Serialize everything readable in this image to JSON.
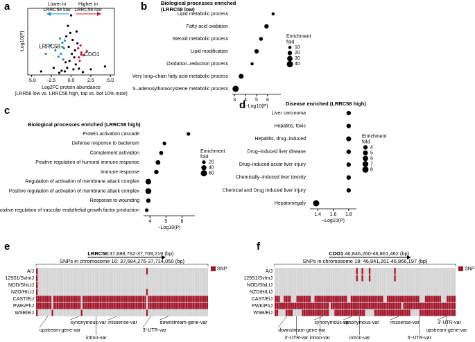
{
  "chart_data": [
    {
      "type": "scatter",
      "panel": "a",
      "annotations": {
        "left_arrow": "Lower in\nLRRC58 low",
        "right_arrow": "Higher in\nLRRC58 low"
      },
      "x_label": "Log2FC protein abundance",
      "x_sublabel": "(LRR58 low vs. LRRC58 high, top vs. bot 10% mice)",
      "y_label": "-Log10(P)",
      "xlim": [
        -5.5,
        5.5
      ],
      "ylim": [
        0,
        9.5
      ],
      "xticks": [
        {
          "value": -5,
          "label": "-5.0"
        },
        {
          "value": -2.5,
          "label": "-2.5"
        },
        {
          "value": 0,
          "label": "0.0"
        },
        {
          "value": 2.5,
          "label": "2.5"
        },
        {
          "value": 5,
          "label": "5.0"
        }
      ],
      "series": [
        {
          "color": "#000000",
          "x": [
            -0.5,
            0.3,
            -0.2,
            0.1,
            0.4,
            -0.7,
            0.6,
            -0.3,
            0.2,
            -0.1,
            0.5,
            -0.8,
            1,
            -1.2,
            0.8,
            -0.4,
            0,
            -1.5,
            1.5,
            4.3,
            -3.8,
            -2.2,
            2.5,
            -0.6,
            0.7
          ],
          "values": [
            1,
            0.8,
            2,
            3,
            2.5,
            1.8,
            1.5,
            4,
            5,
            6,
            3.5,
            0.5,
            0.9,
            0.6,
            4.5,
            7,
            8.5,
            0.3,
            0.4,
            1.2,
            0.5,
            1,
            0.8,
            5.5,
            6.2
          ]
        },
        {
          "color": "#1f8fb5",
          "x": [
            -1,
            -1.3,
            -0.9,
            -1.6,
            -2,
            -1.1,
            -2.6,
            -1.4,
            -0.8,
            -3.2,
            -1.1
          ],
          "values": [
            2.2,
            3,
            3.8,
            2.6,
            3.5,
            4.6,
            4.2,
            5.2,
            4.9,
            3,
            4
          ],
          "point_labels": [
            null,
            null,
            null,
            null,
            null,
            null,
            null,
            null,
            null,
            null,
            "LRRC58"
          ]
        },
        {
          "color": "#c0143c",
          "x": [
            1,
            1.3,
            0.9,
            1.6,
            1.2,
            2,
            1.1,
            1.3
          ],
          "values": [
            2.5,
            3.2,
            3.8,
            2.8,
            4.2,
            3.4,
            2,
            2.9
          ],
          "point_labels": [
            null,
            null,
            null,
            null,
            null,
            null,
            null,
            "CDO1"
          ]
        }
      ]
    },
    {
      "type": "dot",
      "panel": "b",
      "title": "Biological processes enriched\n(LRRC58 low)",
      "x_label": "−Log10(P)",
      "categories": [
        "Lipid metabolic process",
        "Fatty acid oxidation",
        "Steroid metabolic process",
        "Lipid modification",
        "Oxidation–reduction process",
        "Very long–chain fatty acid metabolic process",
        "S–adenosylhomocysteine metabolic process"
      ],
      "values": [
        6.5,
        5.9,
        5.4,
        5,
        4.6,
        3.6,
        3.1
      ],
      "sizes": [
        10,
        20,
        15,
        20,
        10,
        25,
        40
      ],
      "xlim": [
        2.8,
        7.2
      ],
      "xticks": [
        3,
        4,
        5,
        6
      ],
      "size_title": "Enrichment\nfold",
      "size_legend": [
        10,
        20,
        30,
        40
      ],
      "color": "#000000"
    },
    {
      "type": "dot",
      "panel": "c",
      "title": "Biological processes enriched (LRRC58 high)",
      "x_label": "−Log10(P)",
      "categories": [
        "Protein activation cascade",
        "Defense response to bacterium",
        "Complement activation",
        "Positive regulation of humoral immune response",
        "Immune response",
        "Regulation of activation of membrane attack complex",
        "Positive regulation of activation of membrane attack complex",
        "Response to wounding",
        "Positive regulation of vascular endothelial growth factor production"
      ],
      "values": [
        6.4,
        4.9,
        4.7,
        4.5,
        4.4,
        3.9,
        3.9,
        3.9,
        3.8
      ],
      "sizes": [
        20,
        20,
        25,
        35,
        30,
        50,
        55,
        30,
        20
      ],
      "xlim": [
        3.6,
        6.8
      ],
      "xticks": [
        4,
        5,
        6
      ],
      "size_title": "Enrichment\nfold",
      "size_legend": [
        20,
        40,
        60
      ],
      "color": "#000000"
    },
    {
      "type": "dot",
      "panel": "d",
      "title": "Disease enriched (LRRC58 high)",
      "x_label": "−Log10(P)",
      "categories": [
        "Liver carcinoma",
        "Hepatitis, toxic",
        "Hepatitis, drug–induced",
        "Drug–induced liver disease",
        "Drug–induced acute liver injury",
        "Chemically–Induced liver toxicity",
        "Chemical and Drug Induced liver injury",
        "Hepatomegaly"
      ],
      "values": [
        1.8,
        1.8,
        1.8,
        1.8,
        1.8,
        1.8,
        1.8,
        1.38
      ],
      "sizes": [
        4,
        4,
        5,
        4,
        4,
        4,
        4,
        8
      ],
      "xlim": [
        1.3,
        1.9
      ],
      "xticks": [
        1.4,
        1.6,
        1.8
      ],
      "size_title": "Enrichment\nfold",
      "size_legend": [
        4,
        5,
        6,
        7,
        8
      ],
      "color": "#000000"
    },
    {
      "type": "haplotype",
      "panel": "e",
      "gene": "LRRC58",
      "gene_coords": ":37,688,762-37,709,219 (bp)",
      "snp_range": "SNPs in chromosome 16: 37,684,276-37,714,050 (bp)",
      "legend": "SNP",
      "color": "#a3162a",
      "strains": [
        "A/J",
        "129S1/SvImJ",
        "NOD/ShiLtJ",
        "NZO/HILtJ",
        "CAST/EiJ",
        "PWK/PhJ",
        "WSB/EiJ"
      ],
      "ranges": [
        [
          [
            0,
            1
          ],
          [
            64,
            65
          ]
        ],
        [
          [
            0,
            1
          ]
        ],
        [
          [
            0,
            1
          ]
        ],
        [
          [
            0,
            1
          ],
          [
            64,
            65
          ]
        ],
        [
          [
            0,
            9
          ],
          [
            10,
            26
          ],
          [
            27,
            64
          ],
          [
            65,
            100
          ]
        ],
        [
          [
            0,
            9
          ],
          [
            10,
            26
          ],
          [
            27,
            64
          ],
          [
            65,
            100
          ]
        ],
        [
          [
            0,
            1
          ],
          [
            9,
            10
          ],
          [
            26,
            27
          ],
          [
            64,
            65
          ]
        ]
      ],
      "annotations": [
        "upstream-gene-var",
        "synonymous-var",
        "missense-var",
        "intron-var",
        "3'-UTR-var",
        "downstream-gene-var"
      ]
    },
    {
      "type": "haplotype",
      "panel": "f",
      "gene": "CDO1",
      "gene_coords": ":46,846,260-46,861,462 (bp)",
      "snp_range": "SNPs in chromosome 18: 46,841,261-46,866,197 (bp)",
      "legend": "SNP",
      "color": "#a3162a",
      "strains": [
        "A/J",
        "129S1/SvImJ",
        "NOD/ShiLtJ",
        "NZO/HILtJ",
        "CAST/EiJ",
        "PWK/PhJ",
        "WSB/EiJ"
      ],
      "ranges": [
        [
          [
            45,
            46
          ],
          [
            48,
            49
          ],
          [
            52,
            53
          ],
          [
            66,
            67
          ]
        ],
        [
          [
            45,
            46
          ],
          [
            48,
            49
          ],
          [
            52,
            53
          ],
          [
            66,
            67
          ]
        ],
        [],
        [],
        [
          [
            0,
            3
          ],
          [
            5,
            9
          ],
          [
            12,
            20
          ],
          [
            22,
            40
          ],
          [
            42,
            60
          ],
          [
            62,
            80
          ],
          [
            83,
            92
          ],
          [
            95,
            100
          ]
        ],
        [
          [
            0,
            30
          ],
          [
            31,
            70
          ],
          [
            71,
            100
          ]
        ],
        [
          [
            0,
            2
          ],
          [
            6,
            10
          ],
          [
            15,
            30
          ],
          [
            33,
            50
          ],
          [
            55,
            75
          ],
          [
            80,
            100
          ]
        ]
      ],
      "annotations": [
        "downstream-gene-var",
        "synonymous-var",
        "3'-UTR-var",
        "intron-var",
        "synonymous-var",
        "intron-var",
        "missense-var",
        "5'-UTR-var",
        "3'-UTR-var",
        "upstream-gene-var"
      ]
    }
  ]
}
